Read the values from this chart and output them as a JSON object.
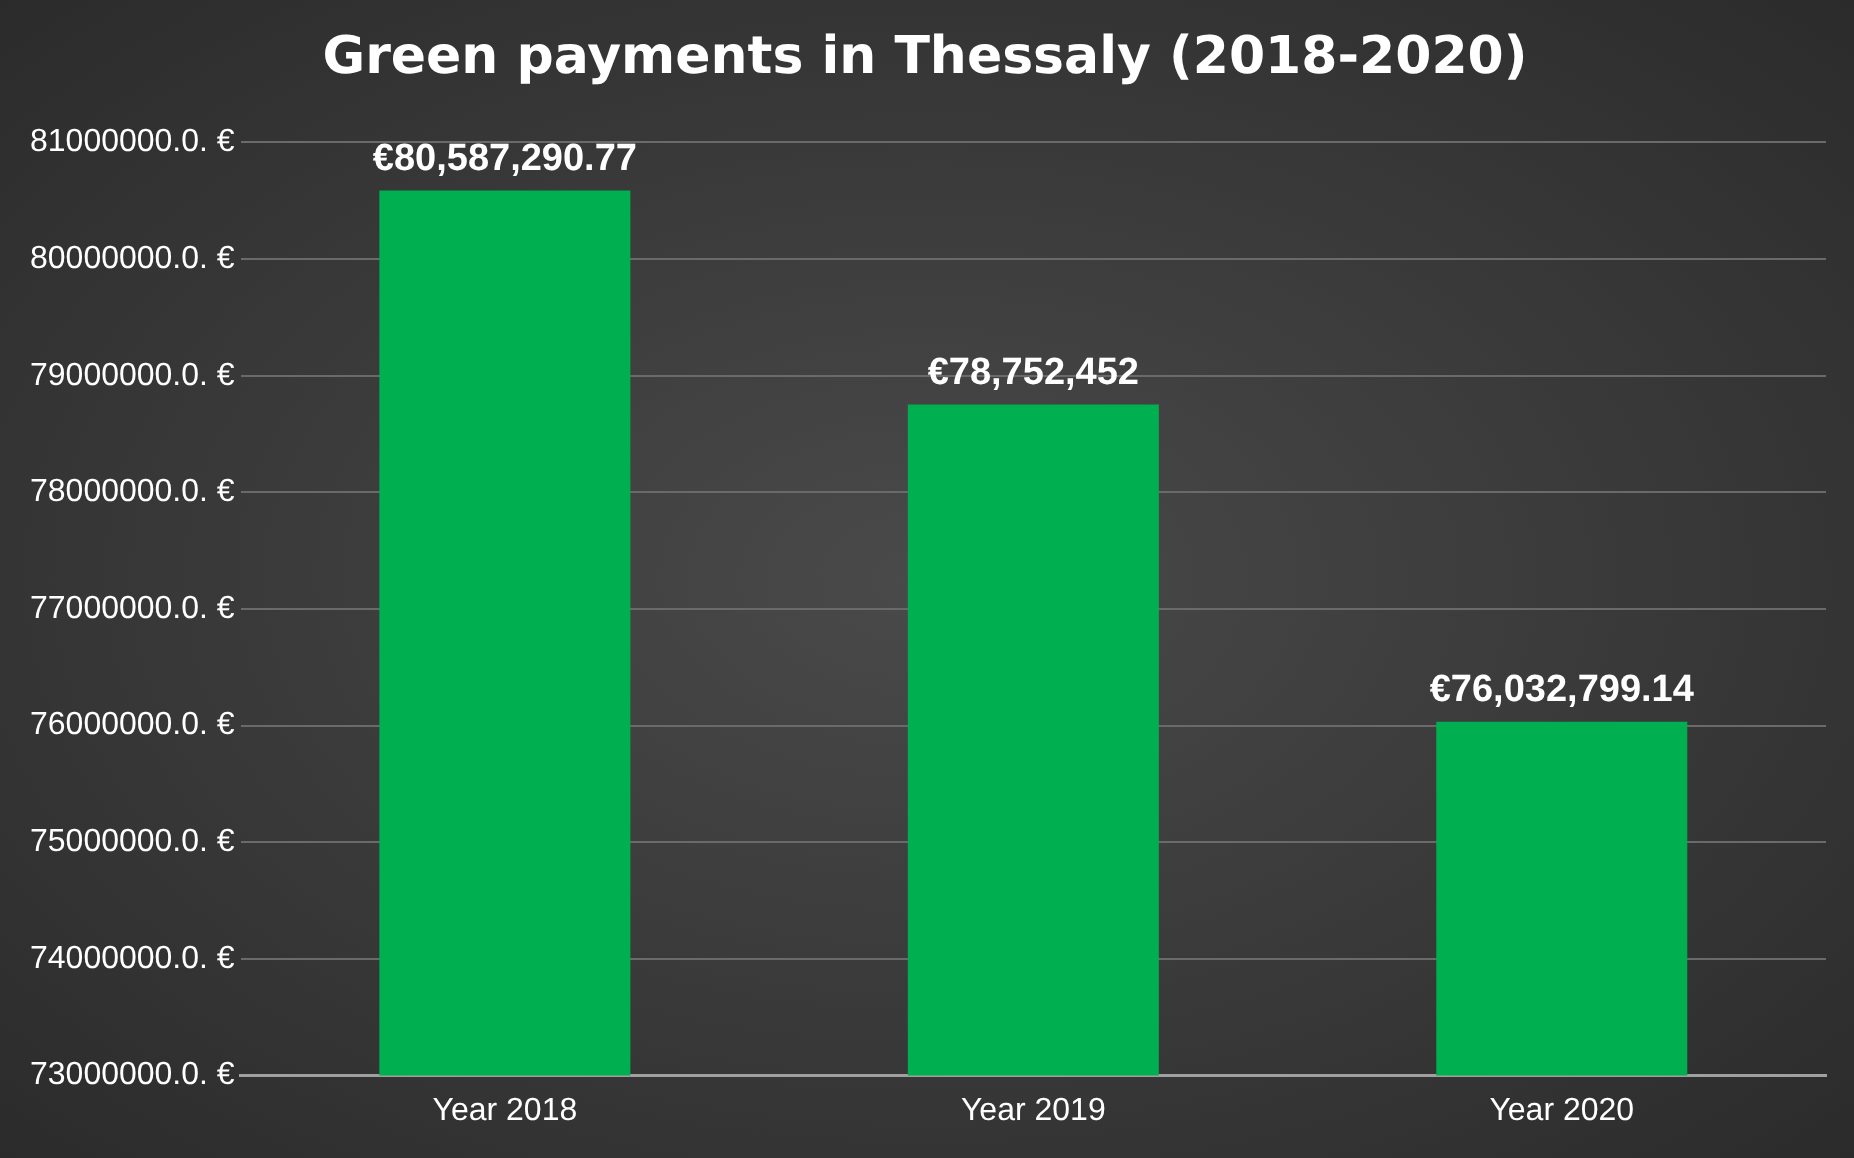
{
  "chart_data": {
    "type": "bar",
    "title": "Green payments in Thessaly (2018-2020)",
    "categories": [
      "Year 2018",
      "Year 2019",
      "Year 2020"
    ],
    "values": [
      80587290.77,
      78752452,
      76032799.14
    ],
    "color": "#00b050",
    "value_labels": [
      "€80,587,290.77",
      "€78,752,452",
      "€76,032,799.14"
    ],
    "ylim": [
      73000000,
      81000000
    ],
    "yticks": [
      {
        "value": 73000000,
        "label": "73000000.0. €"
      },
      {
        "value": 74000000,
        "label": "74000000.0. €"
      },
      {
        "value": 75000000,
        "label": "75000000.0. €"
      },
      {
        "value": 76000000,
        "label": "76000000.0. €"
      },
      {
        "value": 77000000,
        "label": "77000000.0. €"
      },
      {
        "value": 78000000,
        "label": "78000000.0. €"
      },
      {
        "value": 79000000,
        "label": "79000000.0. €"
      },
      {
        "value": 80000000,
        "label": "80000000.0. €"
      },
      {
        "value": 81000000,
        "label": "81000000.0. €"
      }
    ],
    "grid": "y",
    "legend": false
  }
}
